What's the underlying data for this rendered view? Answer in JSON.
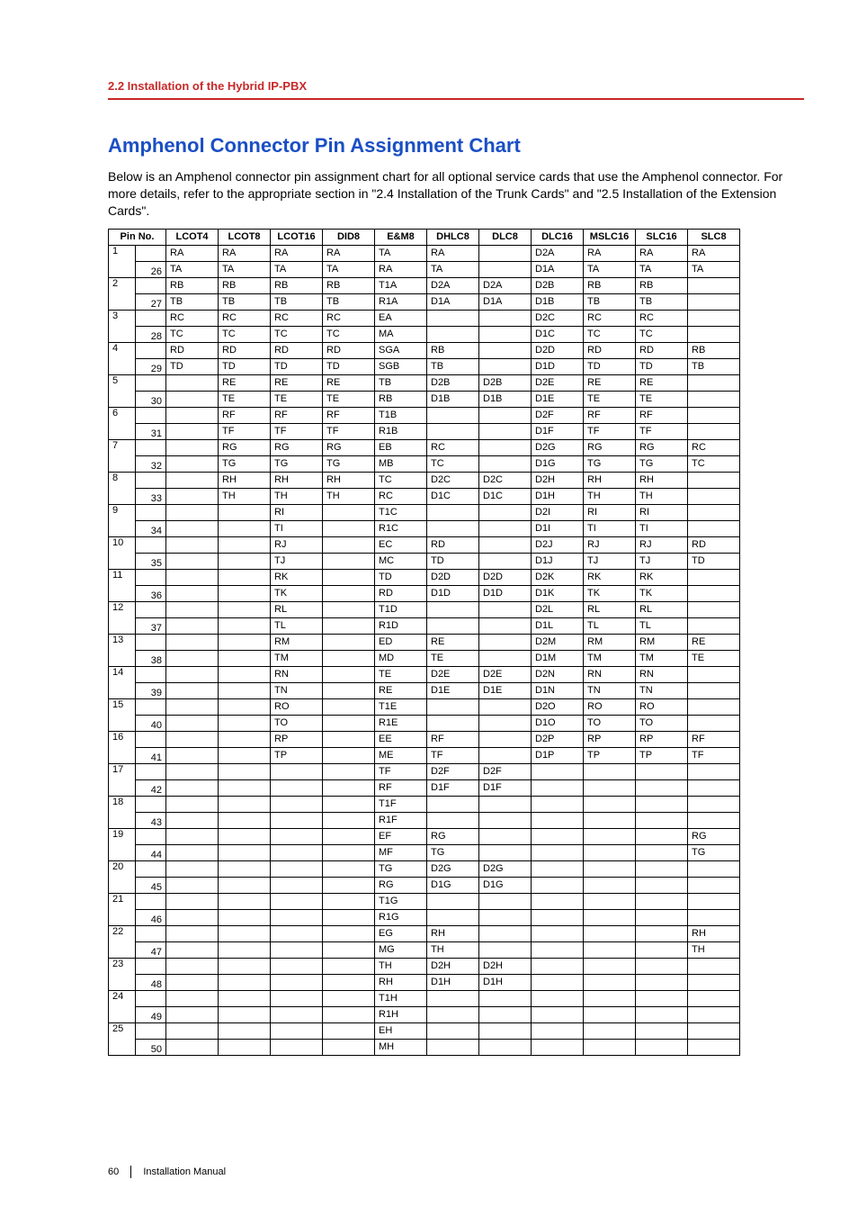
{
  "section_header": "2.2 Installation of the Hybrid IP-PBX",
  "title": "Amphenol Connector Pin Assignment Chart",
  "intro": "Below is an Amphenol connector pin assignment chart for all optional service cards that use the Amphenol connector. For more details, refer to the appropriate section in \"2.4 Installation of the Trunk Cards\" and \"2.5 Installation of the Extension Cards\".",
  "page_number": "60",
  "doc_title": "Installation Manual",
  "columns": [
    "Pin No.",
    "LCOT4",
    "LCOT8",
    "LCOT16",
    "DID8",
    "E&M8",
    "DHLC8",
    "DLC8",
    "DLC16",
    "MSLC16",
    "SLC16",
    "SLC8"
  ],
  "rows": [
    {
      "a": "1",
      "b": "26",
      "v": [
        [
          "RA",
          "TA"
        ],
        [
          "RA",
          "TA"
        ],
        [
          "RA",
          "TA"
        ],
        [
          "RA",
          "TA"
        ],
        [
          "TA",
          "RA"
        ],
        [
          "RA",
          "TA"
        ],
        [
          "",
          ""
        ],
        [
          "D2A",
          "D1A"
        ],
        [
          "RA",
          "TA"
        ],
        [
          "RA",
          "TA"
        ],
        [
          "RA",
          "TA"
        ]
      ]
    },
    {
      "a": "2",
      "b": "27",
      "v": [
        [
          "RB",
          "TB"
        ],
        [
          "RB",
          "TB"
        ],
        [
          "RB",
          "TB"
        ],
        [
          "RB",
          "TB"
        ],
        [
          "T1A",
          "R1A"
        ],
        [
          "D2A",
          "D1A"
        ],
        [
          "D2A",
          "D1A"
        ],
        [
          "D2B",
          "D1B"
        ],
        [
          "RB",
          "TB"
        ],
        [
          "RB",
          "TB"
        ],
        [
          "",
          ""
        ]
      ]
    },
    {
      "a": "3",
      "b": "28",
      "v": [
        [
          "RC",
          "TC"
        ],
        [
          "RC",
          "TC"
        ],
        [
          "RC",
          "TC"
        ],
        [
          "RC",
          "TC"
        ],
        [
          "EA",
          "MA"
        ],
        [
          "",
          ""
        ],
        [
          "",
          ""
        ],
        [
          "D2C",
          "D1C"
        ],
        [
          "RC",
          "TC"
        ],
        [
          "RC",
          "TC"
        ],
        [
          "",
          ""
        ]
      ]
    },
    {
      "a": "4",
      "b": "29",
      "v": [
        [
          "RD",
          "TD"
        ],
        [
          "RD",
          "TD"
        ],
        [
          "RD",
          "TD"
        ],
        [
          "RD",
          "TD"
        ],
        [
          "SGA",
          "SGB"
        ],
        [
          "RB",
          "TB"
        ],
        [
          "",
          ""
        ],
        [
          "D2D",
          "D1D"
        ],
        [
          "RD",
          "TD"
        ],
        [
          "RD",
          "TD"
        ],
        [
          "RB",
          "TB"
        ]
      ]
    },
    {
      "a": "5",
      "b": "30",
      "v": [
        [
          "",
          ""
        ],
        [
          "RE",
          "TE"
        ],
        [
          "RE",
          "TE"
        ],
        [
          "RE",
          "TE"
        ],
        [
          "TB",
          "RB"
        ],
        [
          "D2B",
          "D1B"
        ],
        [
          "D2B",
          "D1B"
        ],
        [
          "D2E",
          "D1E"
        ],
        [
          "RE",
          "TE"
        ],
        [
          "RE",
          "TE"
        ],
        [
          "",
          ""
        ]
      ]
    },
    {
      "a": "6",
      "b": "31",
      "v": [
        [
          "",
          ""
        ],
        [
          "RF",
          "TF"
        ],
        [
          "RF",
          "TF"
        ],
        [
          "RF",
          "TF"
        ],
        [
          "T1B",
          "R1B"
        ],
        [
          "",
          ""
        ],
        [
          "",
          ""
        ],
        [
          "D2F",
          "D1F"
        ],
        [
          "RF",
          "TF"
        ],
        [
          "RF",
          "TF"
        ],
        [
          "",
          ""
        ]
      ]
    },
    {
      "a": "7",
      "b": "32",
      "v": [
        [
          "",
          ""
        ],
        [
          "RG",
          "TG"
        ],
        [
          "RG",
          "TG"
        ],
        [
          "RG",
          "TG"
        ],
        [
          "EB",
          "MB"
        ],
        [
          "RC",
          "TC"
        ],
        [
          "",
          ""
        ],
        [
          "D2G",
          "D1G"
        ],
        [
          "RG",
          "TG"
        ],
        [
          "RG",
          "TG"
        ],
        [
          "RC",
          "TC"
        ]
      ]
    },
    {
      "a": "8",
      "b": "33",
      "v": [
        [
          "",
          ""
        ],
        [
          "RH",
          "TH"
        ],
        [
          "RH",
          "TH"
        ],
        [
          "RH",
          "TH"
        ],
        [
          "TC",
          "RC"
        ],
        [
          "D2C",
          "D1C"
        ],
        [
          "D2C",
          "D1C"
        ],
        [
          "D2H",
          "D1H"
        ],
        [
          "RH",
          "TH"
        ],
        [
          "RH",
          "TH"
        ],
        [
          "",
          ""
        ]
      ]
    },
    {
      "a": "9",
      "b": "34",
      "v": [
        [
          "",
          ""
        ],
        [
          "",
          ""
        ],
        [
          "RI",
          "TI"
        ],
        [
          "",
          ""
        ],
        [
          "T1C",
          "R1C"
        ],
        [
          "",
          ""
        ],
        [
          "",
          ""
        ],
        [
          "D2I",
          "D1I"
        ],
        [
          "RI",
          "TI"
        ],
        [
          "RI",
          "TI"
        ],
        [
          "",
          ""
        ]
      ]
    },
    {
      "a": "10",
      "b": "35",
      "v": [
        [
          "",
          ""
        ],
        [
          "",
          ""
        ],
        [
          "RJ",
          "TJ"
        ],
        [
          "",
          ""
        ],
        [
          "EC",
          "MC"
        ],
        [
          "RD",
          "TD"
        ],
        [
          "",
          ""
        ],
        [
          "D2J",
          "D1J"
        ],
        [
          "RJ",
          "TJ"
        ],
        [
          "RJ",
          "TJ"
        ],
        [
          "RD",
          "TD"
        ]
      ]
    },
    {
      "a": "11",
      "b": "36",
      "v": [
        [
          "",
          ""
        ],
        [
          "",
          ""
        ],
        [
          "RK",
          "TK"
        ],
        [
          "",
          ""
        ],
        [
          "TD",
          "RD"
        ],
        [
          "D2D",
          "D1D"
        ],
        [
          "D2D",
          "D1D"
        ],
        [
          "D2K",
          "D1K"
        ],
        [
          "RK",
          "TK"
        ],
        [
          "RK",
          "TK"
        ],
        [
          "",
          ""
        ]
      ]
    },
    {
      "a": "12",
      "b": "37",
      "v": [
        [
          "",
          ""
        ],
        [
          "",
          ""
        ],
        [
          "RL",
          "TL"
        ],
        [
          "",
          ""
        ],
        [
          "T1D",
          "R1D"
        ],
        [
          "",
          ""
        ],
        [
          "",
          ""
        ],
        [
          "D2L",
          "D1L"
        ],
        [
          "RL",
          "TL"
        ],
        [
          "RL",
          "TL"
        ],
        [
          "",
          ""
        ]
      ]
    },
    {
      "a": "13",
      "b": "38",
      "v": [
        [
          "",
          ""
        ],
        [
          "",
          ""
        ],
        [
          "RM",
          "TM"
        ],
        [
          "",
          ""
        ],
        [
          "ED",
          "MD"
        ],
        [
          "RE",
          "TE"
        ],
        [
          "",
          ""
        ],
        [
          "D2M",
          "D1M"
        ],
        [
          "RM",
          "TM"
        ],
        [
          "RM",
          "TM"
        ],
        [
          "RE",
          "TE"
        ]
      ]
    },
    {
      "a": "14",
      "b": "39",
      "v": [
        [
          "",
          ""
        ],
        [
          "",
          ""
        ],
        [
          "RN",
          "TN"
        ],
        [
          "",
          ""
        ],
        [
          "TE",
          "RE"
        ],
        [
          "D2E",
          "D1E"
        ],
        [
          "D2E",
          "D1E"
        ],
        [
          "D2N",
          "D1N"
        ],
        [
          "RN",
          "TN"
        ],
        [
          "RN",
          "TN"
        ],
        [
          "",
          ""
        ]
      ]
    },
    {
      "a": "15",
      "b": "40",
      "v": [
        [
          "",
          ""
        ],
        [
          "",
          ""
        ],
        [
          "RO",
          "TO"
        ],
        [
          "",
          ""
        ],
        [
          "T1E",
          "R1E"
        ],
        [
          "",
          ""
        ],
        [
          "",
          ""
        ],
        [
          "D2O",
          "D1O"
        ],
        [
          "RO",
          "TO"
        ],
        [
          "RO",
          "TO"
        ],
        [
          "",
          ""
        ]
      ]
    },
    {
      "a": "16",
      "b": "41",
      "v": [
        [
          "",
          ""
        ],
        [
          "",
          ""
        ],
        [
          "RP",
          "TP"
        ],
        [
          "",
          ""
        ],
        [
          "EE",
          "ME"
        ],
        [
          "RF",
          "TF"
        ],
        [
          "",
          ""
        ],
        [
          "D2P",
          "D1P"
        ],
        [
          "RP",
          "TP"
        ],
        [
          "RP",
          "TP"
        ],
        [
          "RF",
          "TF"
        ]
      ]
    },
    {
      "a": "17",
      "b": "42",
      "v": [
        [
          "",
          ""
        ],
        [
          "",
          ""
        ],
        [
          "",
          ""
        ],
        [
          "",
          ""
        ],
        [
          "TF",
          "RF"
        ],
        [
          "D2F",
          "D1F"
        ],
        [
          "D2F",
          "D1F"
        ],
        [
          "",
          ""
        ],
        [
          "",
          ""
        ],
        [
          "",
          ""
        ],
        [
          "",
          ""
        ]
      ]
    },
    {
      "a": "18",
      "b": "43",
      "v": [
        [
          "",
          ""
        ],
        [
          "",
          ""
        ],
        [
          "",
          ""
        ],
        [
          "",
          ""
        ],
        [
          "T1F",
          "R1F"
        ],
        [
          "",
          ""
        ],
        [
          "",
          ""
        ],
        [
          "",
          ""
        ],
        [
          "",
          ""
        ],
        [
          "",
          ""
        ],
        [
          "",
          ""
        ]
      ]
    },
    {
      "a": "19",
      "b": "44",
      "v": [
        [
          "",
          ""
        ],
        [
          "",
          ""
        ],
        [
          "",
          ""
        ],
        [
          "",
          ""
        ],
        [
          "EF",
          "MF"
        ],
        [
          "RG",
          "TG"
        ],
        [
          "",
          ""
        ],
        [
          "",
          ""
        ],
        [
          "",
          ""
        ],
        [
          "",
          ""
        ],
        [
          "RG",
          "TG"
        ]
      ]
    },
    {
      "a": "20",
      "b": "45",
      "v": [
        [
          "",
          ""
        ],
        [
          "",
          ""
        ],
        [
          "",
          ""
        ],
        [
          "",
          ""
        ],
        [
          "TG",
          "RG"
        ],
        [
          "D2G",
          "D1G"
        ],
        [
          "D2G",
          "D1G"
        ],
        [
          "",
          ""
        ],
        [
          "",
          ""
        ],
        [
          "",
          ""
        ],
        [
          "",
          ""
        ]
      ]
    },
    {
      "a": "21",
      "b": "46",
      "v": [
        [
          "",
          ""
        ],
        [
          "",
          ""
        ],
        [
          "",
          ""
        ],
        [
          "",
          ""
        ],
        [
          "T1G",
          "R1G"
        ],
        [
          "",
          ""
        ],
        [
          "",
          ""
        ],
        [
          "",
          ""
        ],
        [
          "",
          ""
        ],
        [
          "",
          ""
        ],
        [
          "",
          ""
        ]
      ]
    },
    {
      "a": "22",
      "b": "47",
      "v": [
        [
          "",
          ""
        ],
        [
          "",
          ""
        ],
        [
          "",
          ""
        ],
        [
          "",
          ""
        ],
        [
          "EG",
          "MG"
        ],
        [
          "RH",
          "TH"
        ],
        [
          "",
          ""
        ],
        [
          "",
          ""
        ],
        [
          "",
          ""
        ],
        [
          "",
          ""
        ],
        [
          "RH",
          "TH"
        ]
      ]
    },
    {
      "a": "23",
      "b": "48",
      "v": [
        [
          "",
          ""
        ],
        [
          "",
          ""
        ],
        [
          "",
          ""
        ],
        [
          "",
          ""
        ],
        [
          "TH",
          "RH"
        ],
        [
          "D2H",
          "D1H"
        ],
        [
          "D2H",
          "D1H"
        ],
        [
          "",
          ""
        ],
        [
          "",
          ""
        ],
        [
          "",
          ""
        ],
        [
          "",
          ""
        ]
      ]
    },
    {
      "a": "24",
      "b": "49",
      "v": [
        [
          "",
          ""
        ],
        [
          "",
          ""
        ],
        [
          "",
          ""
        ],
        [
          "",
          ""
        ],
        [
          "T1H",
          "R1H"
        ],
        [
          "",
          ""
        ],
        [
          "",
          ""
        ],
        [
          "",
          ""
        ],
        [
          "",
          ""
        ],
        [
          "",
          ""
        ],
        [
          "",
          ""
        ]
      ]
    },
    {
      "a": "25",
      "b": "50",
      "v": [
        [
          "",
          ""
        ],
        [
          "",
          ""
        ],
        [
          "",
          ""
        ],
        [
          "",
          ""
        ],
        [
          "EH",
          "MH"
        ],
        [
          "",
          ""
        ],
        [
          "",
          ""
        ],
        [
          "",
          ""
        ],
        [
          "",
          ""
        ],
        [
          "",
          ""
        ],
        [
          "",
          ""
        ]
      ]
    }
  ]
}
